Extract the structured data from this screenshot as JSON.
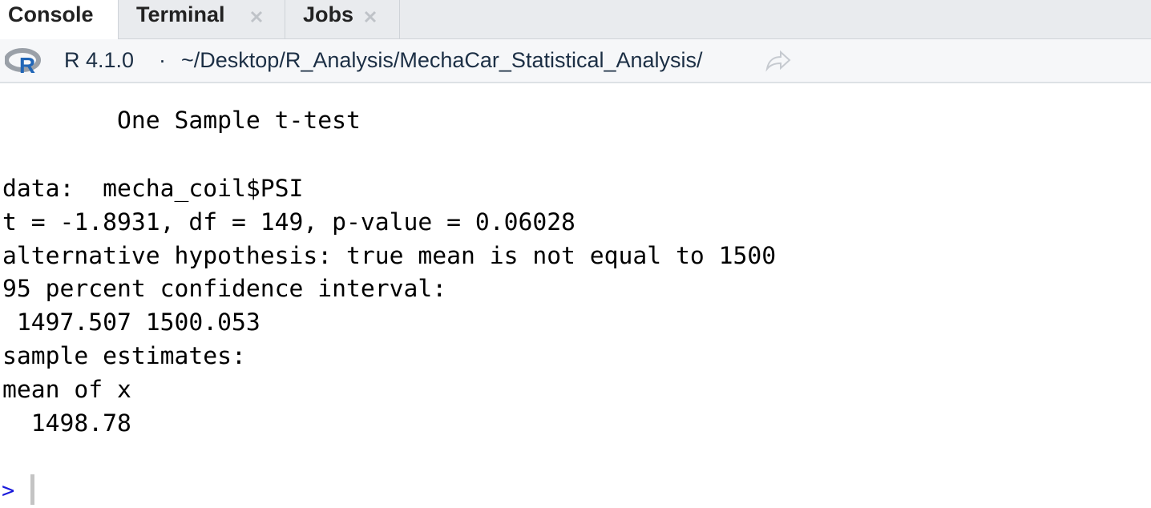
{
  "tabs": [
    {
      "label": "Console"
    },
    {
      "label": "Terminal"
    },
    {
      "label": "Jobs"
    }
  ],
  "toolbar": {
    "logo_letter": "R",
    "version": "R 4.1.0",
    "separator": "·",
    "path": "~/Desktop/R_Analysis/MechaCar_Statistical_Analysis/"
  },
  "console": {
    "heading": "        One Sample t-test",
    "lines": [
      "data:  mecha_coil$PSI",
      "t = -1.8931, df = 149, p-value = 0.06028",
      "alternative hypothesis: true mean is not equal to 1500",
      "95 percent confidence interval:",
      " 1497.507 1500.053",
      "sample estimates:",
      "mean of x",
      "  1498.78"
    ],
    "prompt": ">"
  }
}
